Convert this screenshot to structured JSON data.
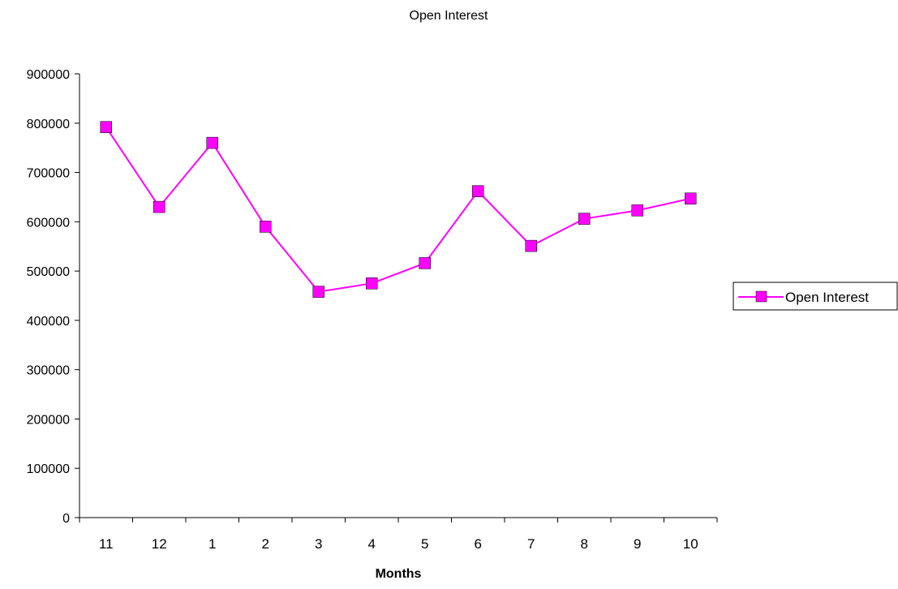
{
  "chart_data": {
    "type": "line",
    "title": "Open Interest",
    "xlabel": "Months",
    "ylabel": "",
    "categories": [
      "11",
      "12",
      "1",
      "2",
      "3",
      "4",
      "5",
      "6",
      "7",
      "8",
      "9",
      "10"
    ],
    "series": [
      {
        "name": "Open Interest",
        "color": "#ff00ff",
        "marker": "square",
        "values": [
          792000,
          630000,
          760000,
          590000,
          458000,
          475000,
          516000,
          662000,
          551000,
          606000,
          623000,
          647000
        ]
      }
    ],
    "ylim": [
      0,
      900000
    ],
    "yticks": [
      0,
      100000,
      200000,
      300000,
      400000,
      500000,
      600000,
      700000,
      800000,
      900000
    ],
    "yticks_labels": [
      "0",
      "100000",
      "200000",
      "300000",
      "400000",
      "500000",
      "600000",
      "700000",
      "800000",
      "900000"
    ],
    "grid": false,
    "legend_position": "right"
  }
}
